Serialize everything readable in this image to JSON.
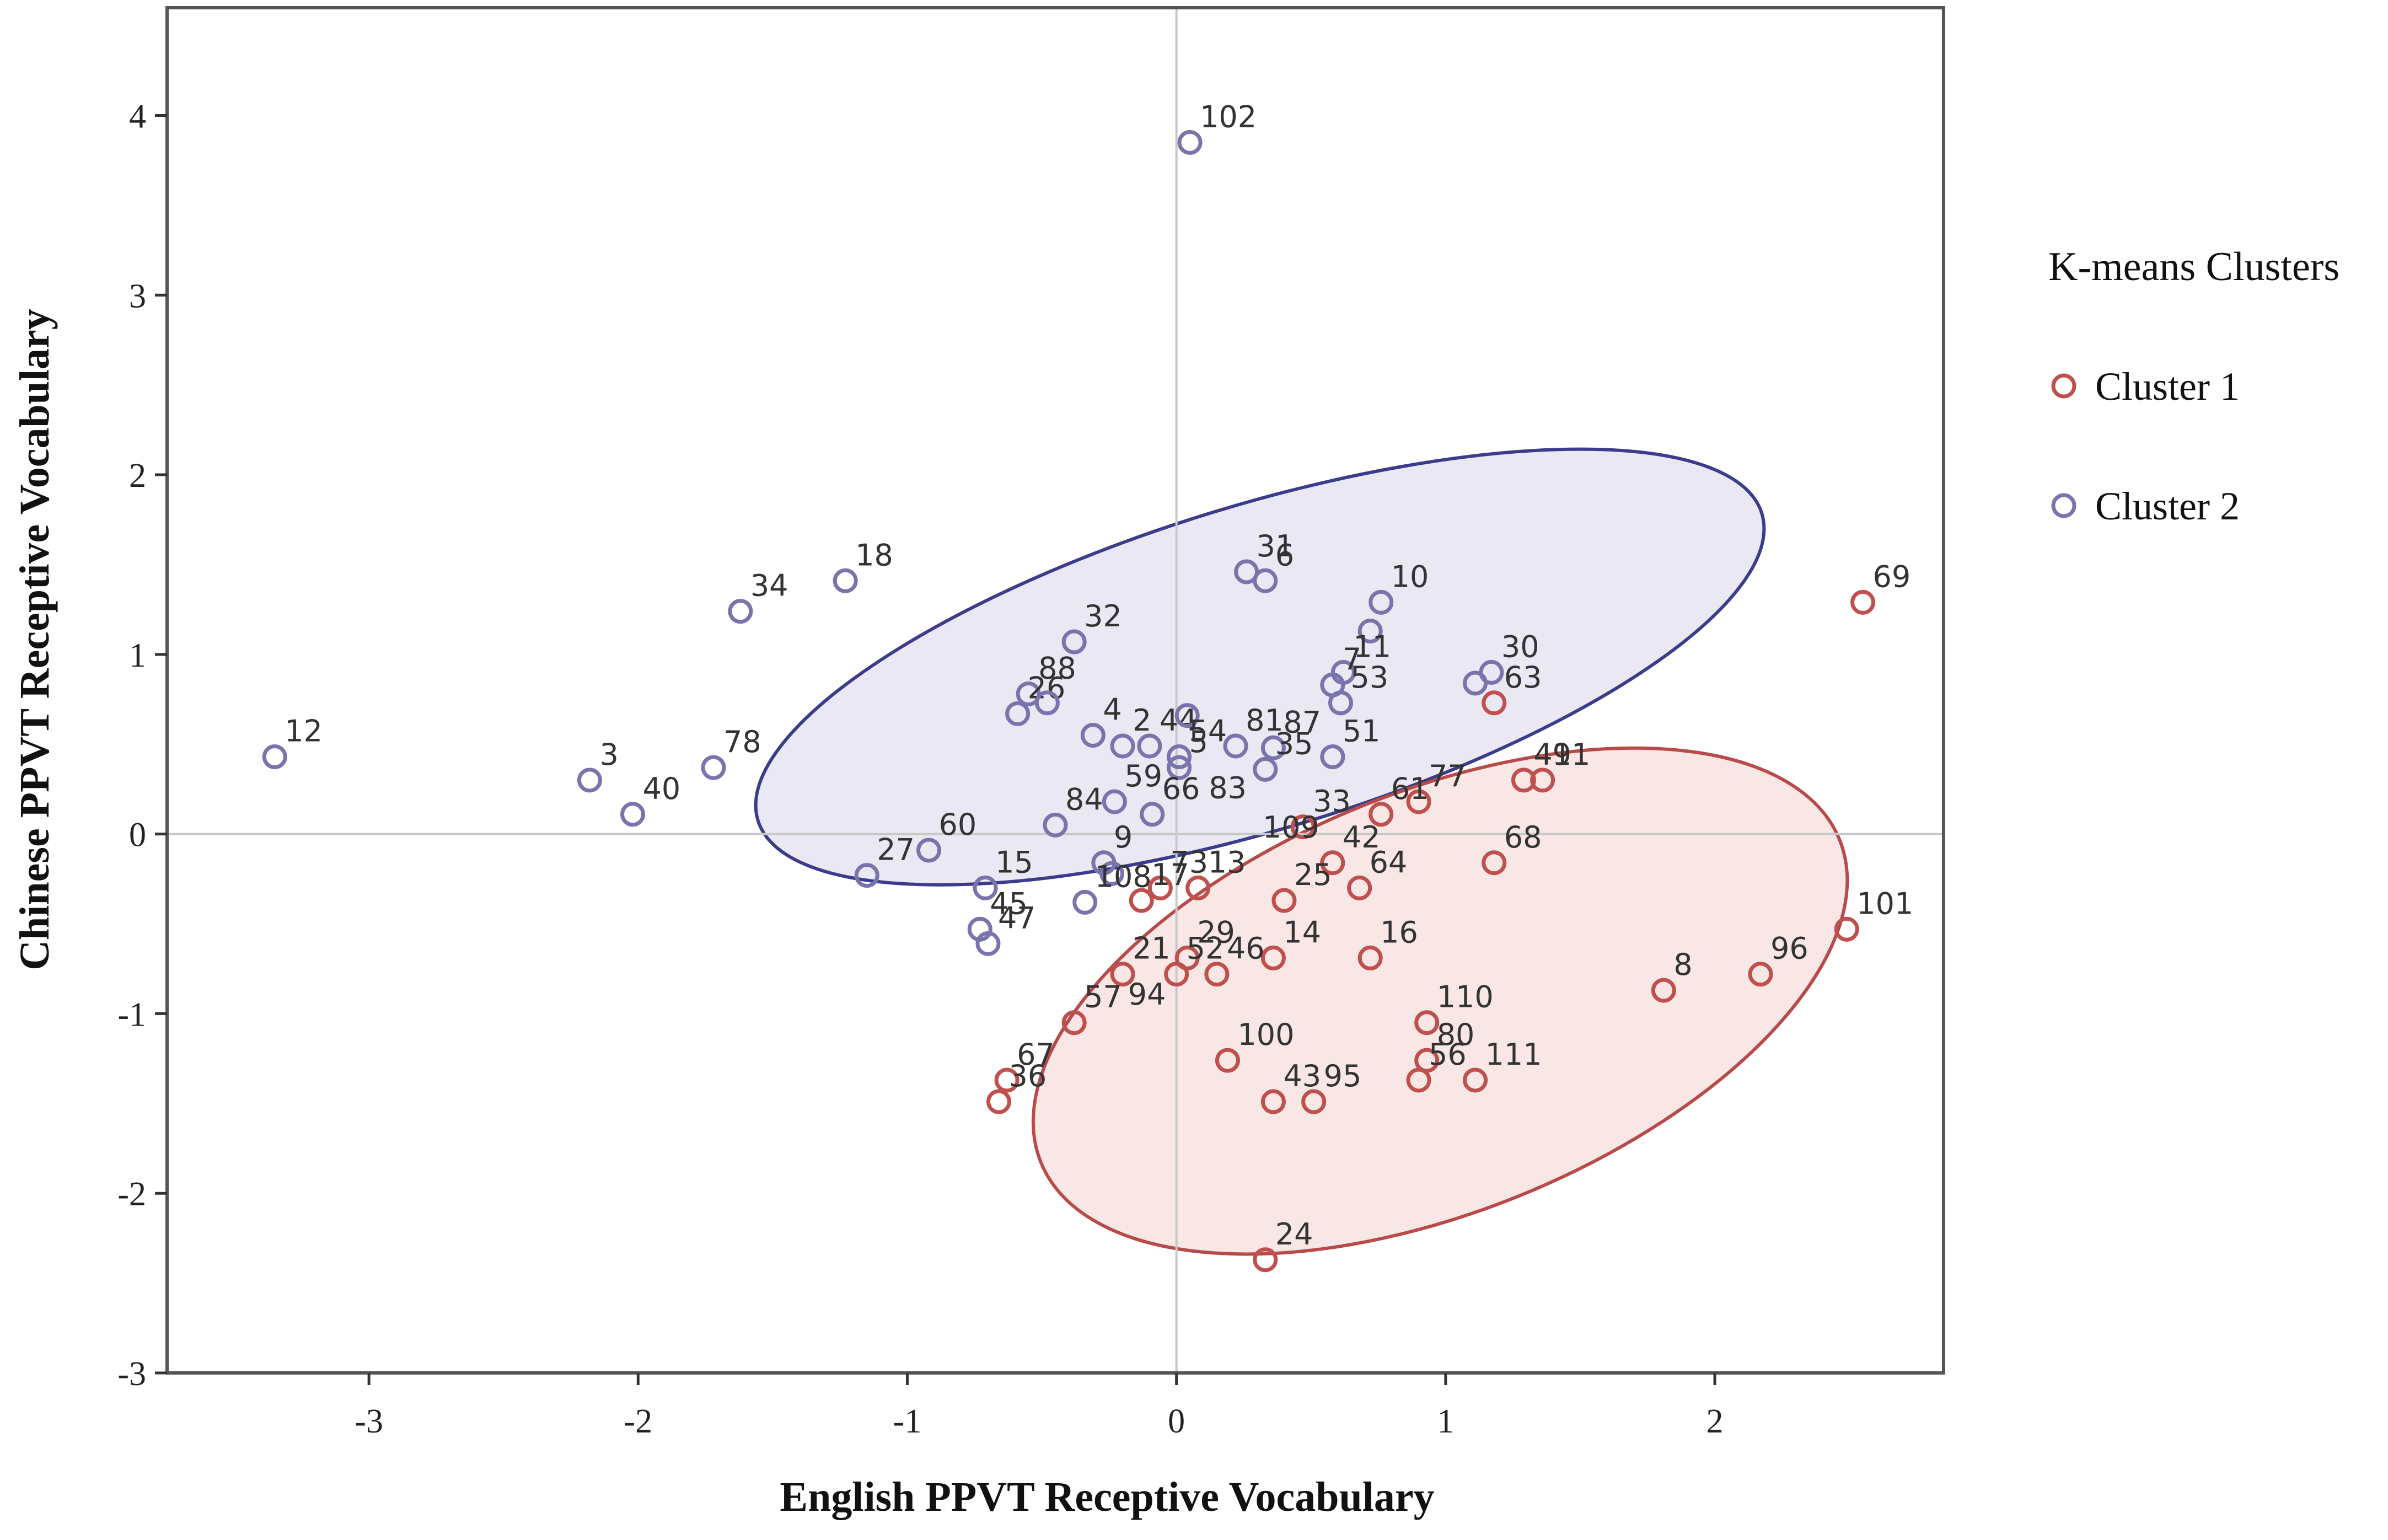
{
  "chart_data": {
    "type": "scatter",
    "title": "",
    "xlabel": "English PPVT Receptive Vocabulary",
    "ylabel": "Chinese PPVT Receptive Vocabulary",
    "xlim": [
      -3.75,
      2.85
    ],
    "ylim": [
      -3,
      4.6
    ],
    "xticks": [
      -3,
      -2,
      -1,
      0,
      1,
      2
    ],
    "yticks": [
      -3,
      -2,
      -1,
      0,
      1,
      2,
      3,
      4
    ],
    "grid": false,
    "reference_lines": {
      "x": 0,
      "y": 0
    },
    "legend": {
      "title": "K-means Clusters",
      "placement": "right",
      "entries": [
        {
          "name": "Cluster 1",
          "color": "#c0504d"
        },
        {
          "name": "Cluster 2",
          "color": "#7a74ad"
        }
      ]
    },
    "ellipses": [
      {
        "cluster": "Cluster 2",
        "cx": 0.31,
        "cy": 0.93,
        "rx": 1.95,
        "ry": 0.9,
        "angle_deg": 17,
        "stroke": "#3c3c8c",
        "fill": "#e6e4f0"
      },
      {
        "cluster": "Cluster 1",
        "cx": 0.98,
        "cy": -0.93,
        "rx": 1.6,
        "ry": 1.17,
        "angle_deg": 22,
        "stroke": "#b94a4a",
        "fill": "#f7e3e1"
      }
    ],
    "series": [
      {
        "name": "Cluster 2",
        "color": "#7a74ad",
        "points": [
          {
            "id": "102",
            "x": 0.05,
            "y": 3.85
          },
          {
            "id": "34",
            "x": -1.62,
            "y": 1.24
          },
          {
            "id": "18",
            "x": -1.23,
            "y": 1.41
          },
          {
            "id": "12",
            "x": -3.35,
            "y": 0.43
          },
          {
            "id": "3",
            "x": -2.18,
            "y": 0.3
          },
          {
            "id": "40",
            "x": -2.02,
            "y": 0.11
          },
          {
            "id": "78",
            "x": -1.72,
            "y": 0.37
          },
          {
            "id": "32",
            "x": -0.38,
            "y": 1.07
          },
          {
            "id": "88",
            "x": -0.55,
            "y": 0.78
          },
          {
            "id": "26",
            "x": -0.59,
            "y": 0.67
          },
          {
            "id": "",
            "x": -0.48,
            "y": 0.73
          },
          {
            "id": "4",
            "x": -0.31,
            "y": 0.55
          },
          {
            "id": "2",
            "x": -0.2,
            "y": 0.49
          },
          {
            "id": "44",
            "x": -0.1,
            "y": 0.49
          },
          {
            "id": "",
            "x": 0.04,
            "y": 0.66
          },
          {
            "id": "59",
            "x": -0.23,
            "y": 0.18
          },
          {
            "id": "54",
            "x": 0.01,
            "y": 0.43
          },
          {
            "id": "5",
            "x": 0.01,
            "y": 0.37
          },
          {
            "id": "84",
            "x": -0.45,
            "y": 0.05
          },
          {
            "id": "60",
            "x": -0.92,
            "y": -0.09
          },
          {
            "id": "27",
            "x": -1.15,
            "y": -0.23
          },
          {
            "id": "15",
            "x": -0.71,
            "y": -0.3
          },
          {
            "id": "45",
            "x": -0.73,
            "y": -0.53
          },
          {
            "id": "47",
            "x": -0.7,
            "y": -0.61
          },
          {
            "id": "66",
            "x": -0.09,
            "y": 0.11
          },
          {
            "id": "9",
            "x": -0.27,
            "y": -0.16
          },
          {
            "id": "",
            "x": -0.24,
            "y": -0.22
          },
          {
            "id": "108",
            "x": -0.34,
            "y": -0.38
          },
          {
            "id": "31",
            "x": 0.26,
            "y": 1.46
          },
          {
            "id": "6",
            "x": 0.33,
            "y": 1.41
          },
          {
            "id": "10",
            "x": 0.76,
            "y": 1.29
          },
          {
            "id": "",
            "x": 0.72,
            "y": 1.13
          },
          {
            "id": "11",
            "x": 0.62,
            "y": 0.9
          },
          {
            "id": "7",
            "x": 0.58,
            "y": 0.83
          },
          {
            "id": "53",
            "x": 0.61,
            "y": 0.73
          },
          {
            "id": "30",
            "x": 1.17,
            "y": 0.9
          },
          {
            "id": "",
            "x": 1.11,
            "y": 0.84
          },
          {
            "id": "81",
            "x": 0.22,
            "y": 0.49
          },
          {
            "id": "87",
            "x": 0.36,
            "y": 0.48
          },
          {
            "id": "35",
            "x": 0.33,
            "y": 0.36
          },
          {
            "id": "51",
            "x": 0.58,
            "y": 0.43
          }
        ]
      },
      {
        "name": "Cluster 1",
        "color": "#c0504d",
        "points": [
          {
            "id": "69",
            "x": 2.55,
            "y": 1.29
          },
          {
            "id": "101",
            "x": 2.49,
            "y": -0.53
          },
          {
            "id": "96",
            "x": 2.17,
            "y": -0.78
          },
          {
            "id": "8",
            "x": 1.81,
            "y": -0.87
          },
          {
            "id": "41",
            "x": 1.29,
            "y": 0.3
          },
          {
            "id": "91",
            "x": 1.36,
            "y": 0.3
          },
          {
            "id": "63",
            "x": 1.18,
            "y": 0.73
          },
          {
            "id": "68",
            "x": 1.18,
            "y": -0.16
          },
          {
            "id": "77",
            "x": 0.9,
            "y": 0.18
          },
          {
            "id": "61",
            "x": 0.76,
            "y": 0.11
          },
          {
            "id": "33",
            "x": 0.47,
            "y": 0.04
          },
          {
            "id": "42",
            "x": 0.58,
            "y": -0.16
          },
          {
            "id": "64",
            "x": 0.68,
            "y": -0.3
          },
          {
            "id": "16",
            "x": 0.72,
            "y": -0.69
          },
          {
            "id": "14",
            "x": 0.36,
            "y": -0.69
          },
          {
            "id": "25",
            "x": 0.4,
            "y": -0.37
          },
          {
            "id": "13",
            "x": 0.08,
            "y": -0.3
          },
          {
            "id": "73",
            "x": -0.06,
            "y": -0.3
          },
          {
            "id": "17",
            "x": -0.13,
            "y": -0.37
          },
          {
            "id": "29",
            "x": 0.04,
            "y": -0.69
          },
          {
            "id": "52",
            "x": 0.0,
            "y": -0.78
          },
          {
            "id": "46",
            "x": 0.15,
            "y": -0.78
          },
          {
            "id": "21",
            "x": -0.2,
            "y": -0.78
          },
          {
            "id": "57",
            "x": -0.38,
            "y": -1.05
          },
          {
            "id": "67",
            "x": -0.63,
            "y": -1.37
          },
          {
            "id": "36",
            "x": -0.66,
            "y": -1.49
          },
          {
            "id": "100",
            "x": 0.19,
            "y": -1.26
          },
          {
            "id": "43",
            "x": 0.36,
            "y": -1.49
          },
          {
            "id": "95",
            "x": 0.51,
            "y": -1.49
          },
          {
            "id": "110",
            "x": 0.93,
            "y": -1.05
          },
          {
            "id": "80",
            "x": 0.93,
            "y": -1.26
          },
          {
            "id": "56",
            "x": 0.9,
            "y": -1.37
          },
          {
            "id": "111",
            "x": 1.11,
            "y": -1.37
          },
          {
            "id": "24",
            "x": 0.33,
            "y": -2.37
          }
        ]
      }
    ],
    "free_labels": [
      {
        "text": "83",
        "x": 0.12,
        "y": 0.2
      },
      {
        "text": "109",
        "x": 0.32,
        "y": -0.02
      },
      {
        "text": "94",
        "x": -0.18,
        "y": -0.95
      }
    ]
  }
}
